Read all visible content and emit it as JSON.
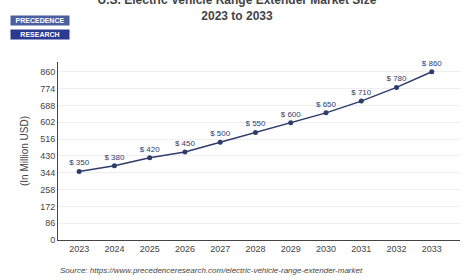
{
  "chart_data": {
    "type": "line",
    "title": "U.S. Electric Vehicle Range Extender Market Size",
    "subtitle": "2023 to 2033",
    "y_label": "(In Million USD)",
    "annotations": [
      "Source: https://www.precedenceresearch.com/electric-vehicle-range-extender-market",
      "PRECEDENCE",
      "RESEARCH"
    ],
    "x": [
      2023,
      2024,
      2025,
      2026,
      2027,
      2028,
      2029,
      2030,
      2031,
      2032,
      2033
    ],
    "values": [
      350,
      380,
      420,
      450,
      500,
      550,
      600,
      650,
      710,
      780,
      860
    ],
    "value_labels": [
      "$ 350",
      "$ 380",
      "$ 420",
      "$ 450",
      "$ 500",
      "$ 550",
      "$ 600",
      "$ 650",
      "$ 710",
      "$ 780",
      "$ 860"
    ],
    "data_labels": true,
    "color": "#2e3d6b",
    "marker": "circle",
    "xlim": [
      2022.4,
      2033.8
    ],
    "xticks": [
      2023,
      2024,
      2025,
      2026,
      2027,
      2028,
      2029,
      2030,
      2031,
      2032,
      2033
    ],
    "ylim": [
      0,
      910
    ],
    "yticks": [
      0,
      86,
      172,
      258,
      344,
      430,
      516,
      602,
      688,
      774,
      860
    ],
    "grid": "y"
  }
}
